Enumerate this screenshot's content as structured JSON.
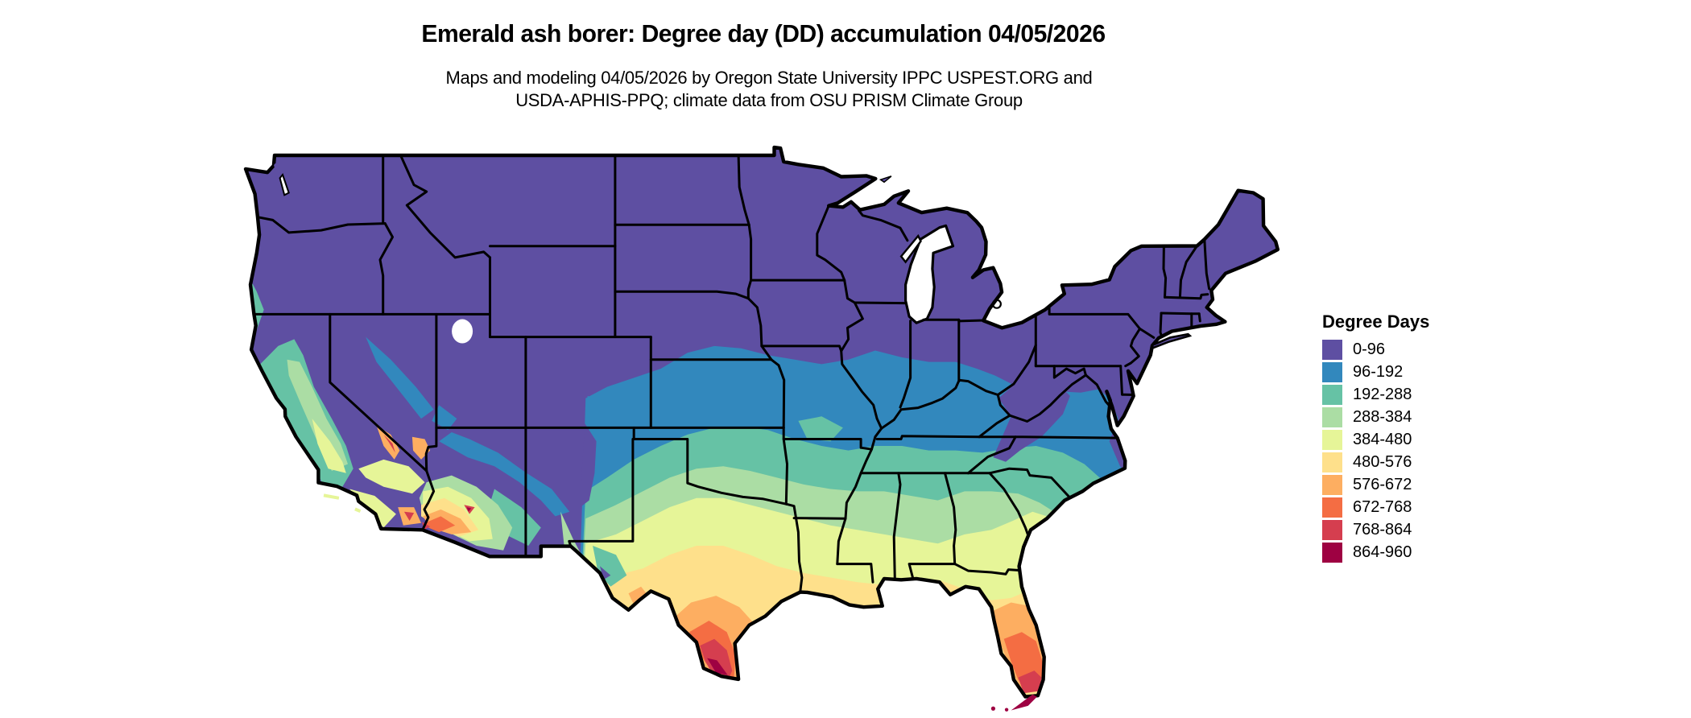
{
  "header": {
    "title": "Emerald ash borer: Degree day (DD) accumulation 04/05/2026",
    "subtitle_line1": "Maps and modeling 04/05/2026 by Oregon State University IPPC USPEST.ORG and",
    "subtitle_line2": "USDA-APHIS-PPQ; climate data from OSU PRISM Climate Group"
  },
  "legend": {
    "title": "Degree Days",
    "items": [
      {
        "label": "0-96",
        "color": "#5e4fa2"
      },
      {
        "label": "96-192",
        "color": "#3288bd"
      },
      {
        "label": "192-288",
        "color": "#66c2a5"
      },
      {
        "label": "288-384",
        "color": "#abdda4"
      },
      {
        "label": "384-480",
        "color": "#e6f598"
      },
      {
        "label": "480-576",
        "color": "#fee08b"
      },
      {
        "label": "576-672",
        "color": "#fdae61"
      },
      {
        "label": "672-768",
        "color": "#f46d43"
      },
      {
        "label": "768-864",
        "color": "#d53e4f"
      },
      {
        "label": "864-960",
        "color": "#9e0142"
      }
    ]
  },
  "chart_data": {
    "type": "choropleth_map",
    "region": "contiguous United States",
    "title": "Emerald ash borer: Degree day (DD) accumulation 04/05/2026",
    "date_shown": "04/05/2026",
    "units": "degree days (DD)",
    "legend_title": "Degree Days",
    "classes": [
      {
        "label": "0-96",
        "min": 0,
        "max": 96,
        "color": "#5e4fa2"
      },
      {
        "label": "96-192",
        "min": 96,
        "max": 192,
        "color": "#3288bd"
      },
      {
        "label": "192-288",
        "min": 192,
        "max": 288,
        "color": "#66c2a5"
      },
      {
        "label": "288-384",
        "min": 288,
        "max": 384,
        "color": "#abdda4"
      },
      {
        "label": "384-480",
        "min": 384,
        "max": 480,
        "color": "#e6f598"
      },
      {
        "label": "480-576",
        "min": 480,
        "max": 576,
        "color": "#fee08b"
      },
      {
        "label": "576-672",
        "min": 576,
        "max": 672,
        "color": "#fdae61"
      },
      {
        "label": "672-768",
        "min": 672,
        "max": 768,
        "color": "#f46d43"
      },
      {
        "label": "768-864",
        "min": 768,
        "max": 864,
        "color": "#d53e4f"
      },
      {
        "label": "864-960",
        "min": 864,
        "max": 960,
        "color": "#9e0142"
      }
    ],
    "water_and_background_color": "#ffffff",
    "boundary_color": "#000000"
  }
}
